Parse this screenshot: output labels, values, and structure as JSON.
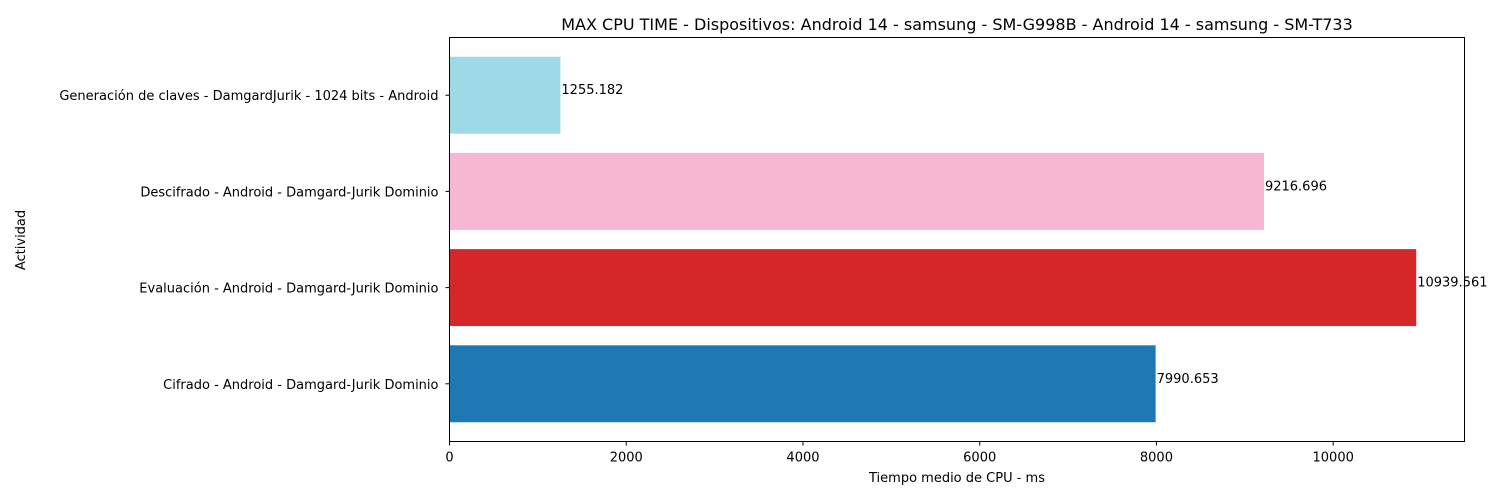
{
  "chart_data": {
    "type": "bar",
    "orientation": "horizontal",
    "title": "MAX CPU TIME - Dispositivos: Android 14 - samsung - SM-G998B - Android 14 - samsung - SM-T733",
    "xlabel": "Tiempo medio de CPU - ms",
    "ylabel": "Actividad",
    "xlim": [
      0,
      11486
    ],
    "xticks": [
      0,
      2000,
      4000,
      6000,
      8000,
      10000
    ],
    "grid": false,
    "legend": "none",
    "categories": [
      "Cifrado - Android - Damgard-Jurik Dominio",
      "Evaluación - Android - Damgard-Jurik Dominio",
      "Descifrado - Android - Damgard-Jurik Dominio",
      "Generación de claves - DamgardJurik - 1024 bits - Android"
    ],
    "values": [
      7990.653,
      10939.561,
      9216.696,
      1255.182
    ],
    "data_labels": [
      "7990.653",
      "10939.561",
      "9216.696",
      "1255.182"
    ],
    "colors": [
      "#1f77b4",
      "#d62728",
      "#f7b6d2",
      "#9edae5"
    ]
  }
}
